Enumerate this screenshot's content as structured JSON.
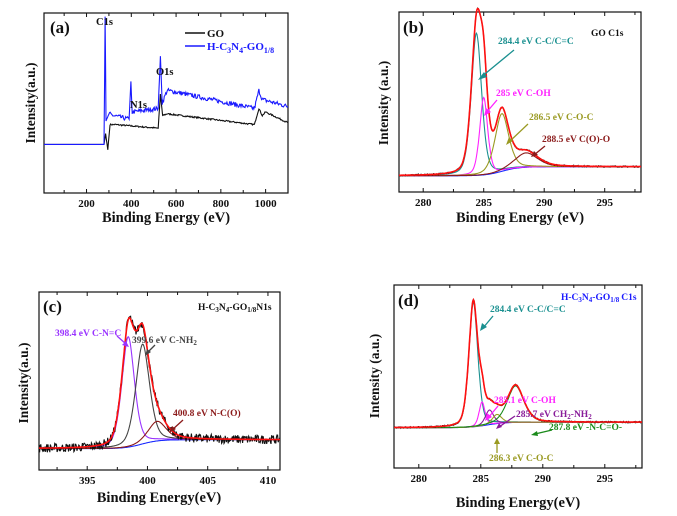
{
  "chart_data": [
    {
      "id": "a",
      "type": "line",
      "panel_label": "(a)",
      "title": "",
      "xlabel": "Binding Energy (eV)",
      "ylabel": "Intensity(a.u.)",
      "xlim": [
        10,
        1100
      ],
      "ylim": [
        0,
        1
      ],
      "xticks": [
        200,
        400,
        600,
        800,
        1000
      ],
      "xtick_labels": [
        "200",
        "400",
        "600",
        "800",
        "1000"
      ],
      "legend_position": "top-right",
      "series": [
        {
          "name": "GO",
          "color": "#111111",
          "baseline_points": [
            [
              10,
              0.27
            ],
            [
              278,
              0.27
            ],
            [
              285,
              0.33
            ],
            [
              295,
              0.24
            ],
            [
              305,
              0.38
            ],
            [
              330,
              0.38
            ],
            [
              520,
              0.36
            ],
            [
              530,
              0.55
            ],
            [
              540,
              0.43
            ],
            [
              560,
              0.44
            ],
            [
              950,
              0.38
            ],
            [
              970,
              0.47
            ],
            [
              985,
              0.43
            ],
            [
              1000,
              0.45
            ],
            [
              1100,
              0.39
            ]
          ]
        },
        {
          "name": "H-C3N4-GO1/8",
          "color": "#1a1aff",
          "baseline_points": [
            [
              10,
              0.27
            ],
            [
              278,
              0.27
            ],
            [
              283,
              0.98
            ],
            [
              287,
              0.4
            ],
            [
              300,
              0.44
            ],
            [
              320,
              0.43
            ],
            [
              390,
              0.41
            ],
            [
              398,
              0.62
            ],
            [
              404,
              0.45
            ],
            [
              520,
              0.47
            ],
            [
              530,
              0.76
            ],
            [
              538,
              0.5
            ],
            [
              560,
              0.57
            ],
            [
              950,
              0.47
            ],
            [
              970,
              0.57
            ],
            [
              985,
              0.52
            ],
            [
              1100,
              0.48
            ]
          ]
        }
      ],
      "legend": [
        "GO",
        "H-C3N4-GO1/8"
      ],
      "legend_html": [
        {
          "label": "GO",
          "sub": null
        },
        {
          "label": "H-C",
          "parts": [
            "H-C",
            "3",
            "N",
            "4",
            "-GO",
            "1/8"
          ]
        }
      ],
      "annotations": [
        {
          "text": "C1s",
          "x": 285,
          "y": 1.0
        },
        {
          "text": "N1s",
          "x": 400,
          "y": 0.66
        },
        {
          "text": "O1s",
          "x": 533,
          "y": 0.8
        }
      ]
    },
    {
      "id": "b",
      "type": "line",
      "panel_label": "(b)",
      "title": "GO C1s",
      "xlabel": "Binding Energy (eV)",
      "ylabel": "Intensity (a.u.)",
      "xlim": [
        278,
        298
      ],
      "ylim": [
        0,
        1
      ],
      "xticks": [
        280,
        285,
        290,
        295
      ],
      "xtick_labels": [
        "280",
        "285",
        "290",
        "295"
      ],
      "baseline": {
        "left": 0.09,
        "right": 0.14,
        "step_center": 286.5
      },
      "components": [
        {
          "label": "284.4 eV C-C/C=C",
          "center": 284.4,
          "height": 0.79,
          "width": 0.45,
          "color": "#1a9090"
        },
        {
          "label": "285 eV C-OH",
          "center": 285.0,
          "height": 0.43,
          "width": 0.35,
          "color": "#ff22ff"
        },
        {
          "label": "286.5 eV C-O-C",
          "center": 286.5,
          "height": 0.32,
          "width": 0.6,
          "color": "#9a9a22"
        },
        {
          "label": "288.5 eV C(O)-O",
          "center": 288.5,
          "height": 0.08,
          "width": 1.0,
          "color": "#8b1a1a"
        }
      ],
      "envelope_color": "#ff1010",
      "raw_color": "#111111",
      "background_color": "#1a2aff"
    },
    {
      "id": "c",
      "type": "line",
      "panel_label": "(c)",
      "title": "H-C3N4-GO1/8 N1s",
      "xlabel": "Binding Energy(eV)",
      "ylabel": "Intensity(a.u.)",
      "xlim": [
        391,
        411
      ],
      "ylim": [
        0,
        1
      ],
      "xticks": [
        395,
        400,
        405,
        410
      ],
      "xtick_labels": [
        "395",
        "400",
        "405",
        "410"
      ],
      "baseline": {
        "left": 0.12,
        "right": 0.17,
        "step_center": 399.5
      },
      "components": [
        {
          "label": "398.4 eV C-N=C",
          "center": 398.4,
          "height": 0.62,
          "width": 0.55,
          "color": "#9933ff"
        },
        {
          "label": "399.6 eV C-NH2",
          "center": 399.6,
          "height": 0.56,
          "width": 0.6,
          "color": "#444444"
        },
        {
          "label": "400.8 eV N-C(O)",
          "center": 400.8,
          "height": 0.11,
          "width": 0.8,
          "color": "#8b1a1a"
        }
      ],
      "envelope_color": "#ff1010",
      "raw_color": "#111111",
      "background_color": "#1a2aff"
    },
    {
      "id": "d",
      "type": "line",
      "panel_label": "(d)",
      "title": "H-C3N4-GO1/8 C1s",
      "xlabel": "Binding Energy(eV)",
      "ylabel": "Intensity (a.u.)",
      "xlim": [
        278,
        298
      ],
      "ylim": [
        0,
        1
      ],
      "xticks": [
        280,
        285,
        290,
        295
      ],
      "xtick_labels": [
        "280",
        "285",
        "290",
        "295"
      ],
      "baseline": {
        "left": 0.22,
        "right": 0.25,
        "step_center": 285.5
      },
      "components": [
        {
          "label": "284.4 eV C-C/C=C",
          "center": 284.4,
          "height": 0.68,
          "width": 0.38,
          "color": "#1a9090"
        },
        {
          "label": "285.1 eV C-OH",
          "center": 285.1,
          "height": 0.13,
          "width": 0.25,
          "color": "#ff22ff"
        },
        {
          "label": "285.7 eV CH2-NH2",
          "center": 285.7,
          "height": 0.08,
          "width": 0.35,
          "color": "#881a99"
        },
        {
          "label": "286.3 eV C-O-C",
          "center": 286.3,
          "height": 0.05,
          "width": 0.4,
          "color": "#9a9a22"
        },
        {
          "label": "287.8 eV -N-C=O-",
          "center": 287.8,
          "height": 0.2,
          "width": 0.7,
          "color": "#1a8a1a"
        }
      ],
      "envelope_color": "#ff1010",
      "raw_color": "#111111",
      "background_color": "#1a2aff"
    }
  ],
  "labels": {
    "a": {
      "letter": "(a)",
      "c1s": "C1s",
      "n1s": "N1s",
      "o1s": "O1s",
      "legend_go": "GO",
      "xlabel": "Binding Energy (eV)",
      "ylabel": "Intensity(a.u.)"
    },
    "b": {
      "letter": "(b)",
      "title": "GO C1s",
      "p1": "284.4 eV C-C/C=C",
      "p2": "285 eV C-OH",
      "p3": "286.5 eV C-O-C",
      "p4": "288.5 eV C(O)-O",
      "xlabel": "Binding Energy (eV)",
      "ylabel": "Intensity (a.u.)"
    },
    "c": {
      "letter": "(c)",
      "p1": "398.4 eV C-N=C",
      "p2": "399.6 eV C-NH",
      "p3": "400.8 eV N-C(O)",
      "xlabel": "Binding Energy(eV)",
      "ylabel": "Intensity(a.u.)",
      "title_suffix": "N1s"
    },
    "d": {
      "letter": "(d)",
      "p1": "284.4 eV C-C/C=C",
      "p2": "285.1 eV C-OH",
      "p3": "285.7 eV CH",
      "p4": "286.3 eV C-O-C",
      "p5": "287.8 eV -N-C=O-",
      "xlabel": "Binding Energy(eV)",
      "ylabel": "Intensity (a.u.)",
      "title_suffix": "C1s"
    }
  }
}
